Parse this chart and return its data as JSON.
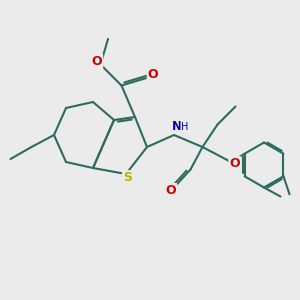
{
  "bg": "#ebebeb",
  "bond_color": "#2d6b5a",
  "lw": 1.5,
  "atom_colors": {
    "O": "#cc0000",
    "N": "#0000bb",
    "S": "#b8b800",
    "C": "#2d6b5a"
  },
  "fs": 7.5,
  "figsize": [
    3.0,
    3.0
  ],
  "dpi": 100
}
